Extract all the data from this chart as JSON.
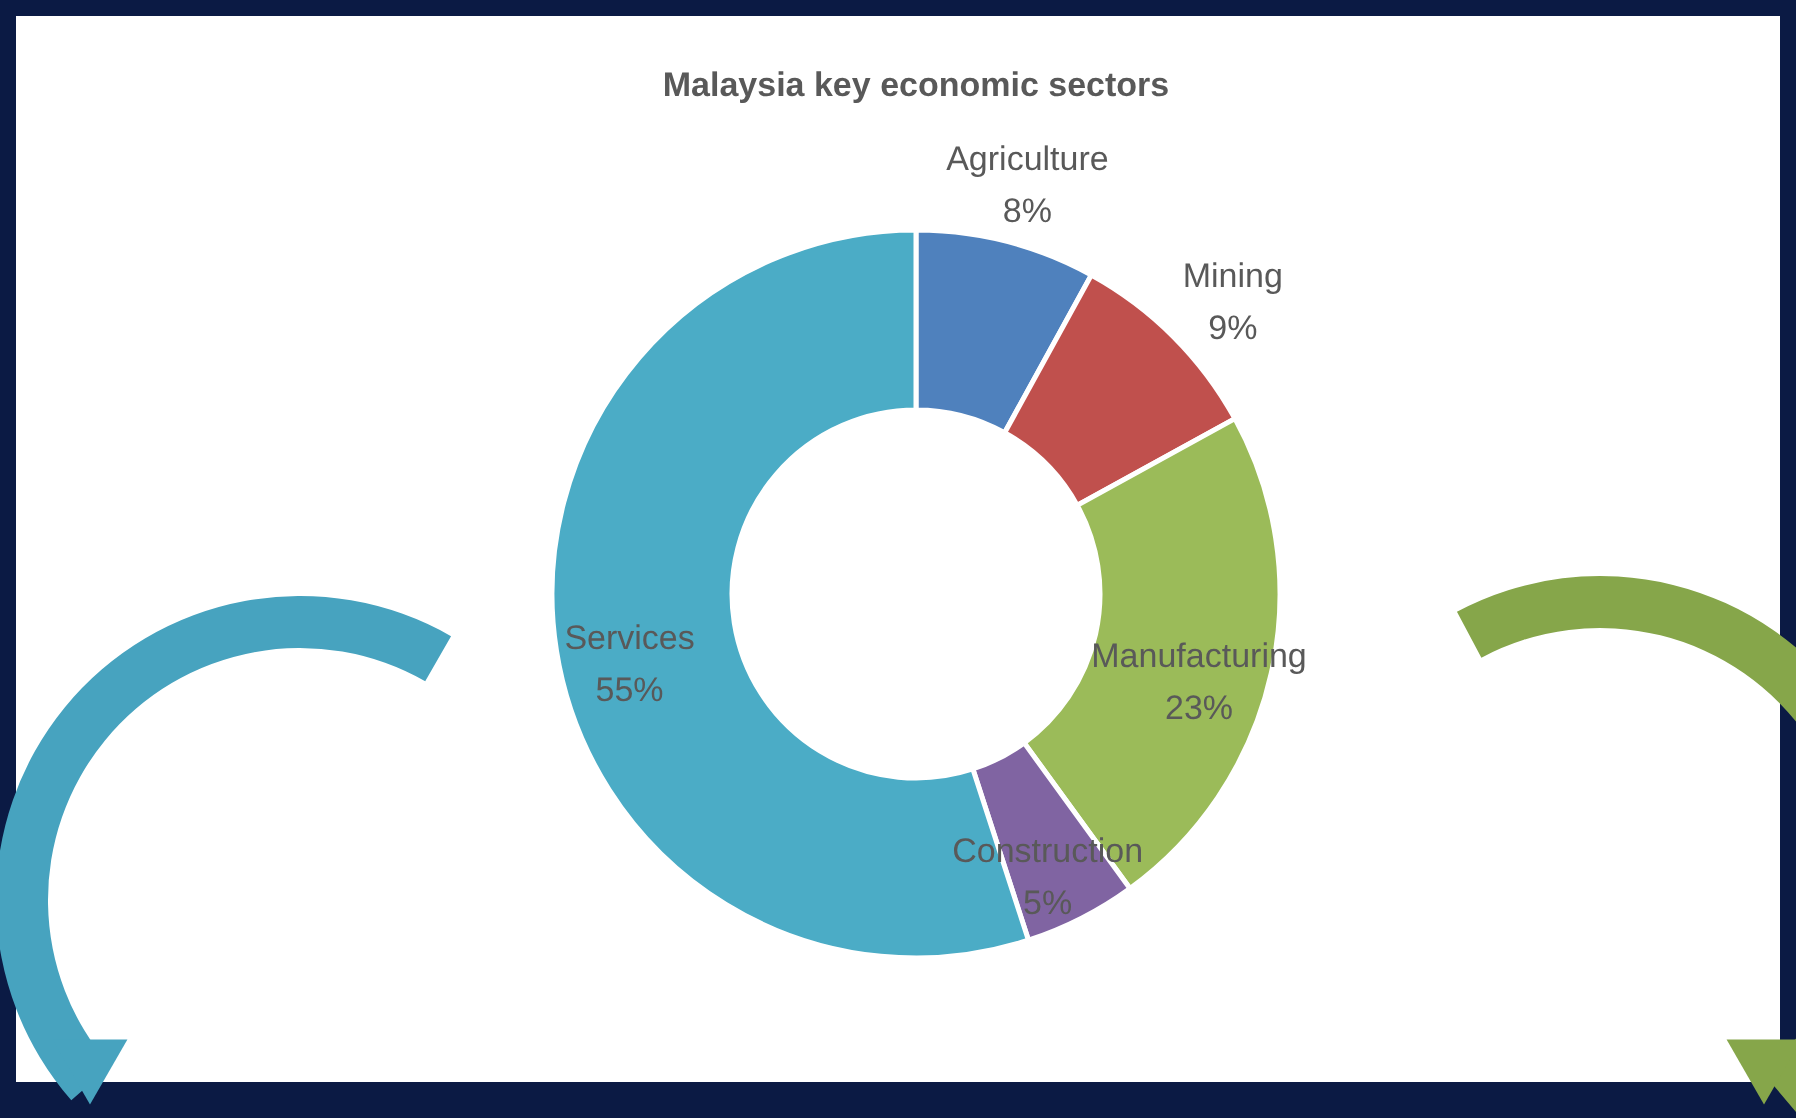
{
  "chart_data": {
    "type": "donut",
    "title": "Malaysia key economic sectors",
    "categories": [
      "Agriculture",
      "Mining",
      "Manufacturing",
      "Construction",
      "Services"
    ],
    "values": [
      8,
      9,
      23,
      5,
      55
    ],
    "colors": [
      "#4f81bd",
      "#c0504d",
      "#9bbb59",
      "#8064a2",
      "#4bacc6"
    ],
    "value_labels": [
      "8%",
      "9%",
      "23%",
      "5%",
      "55%"
    ]
  }
}
